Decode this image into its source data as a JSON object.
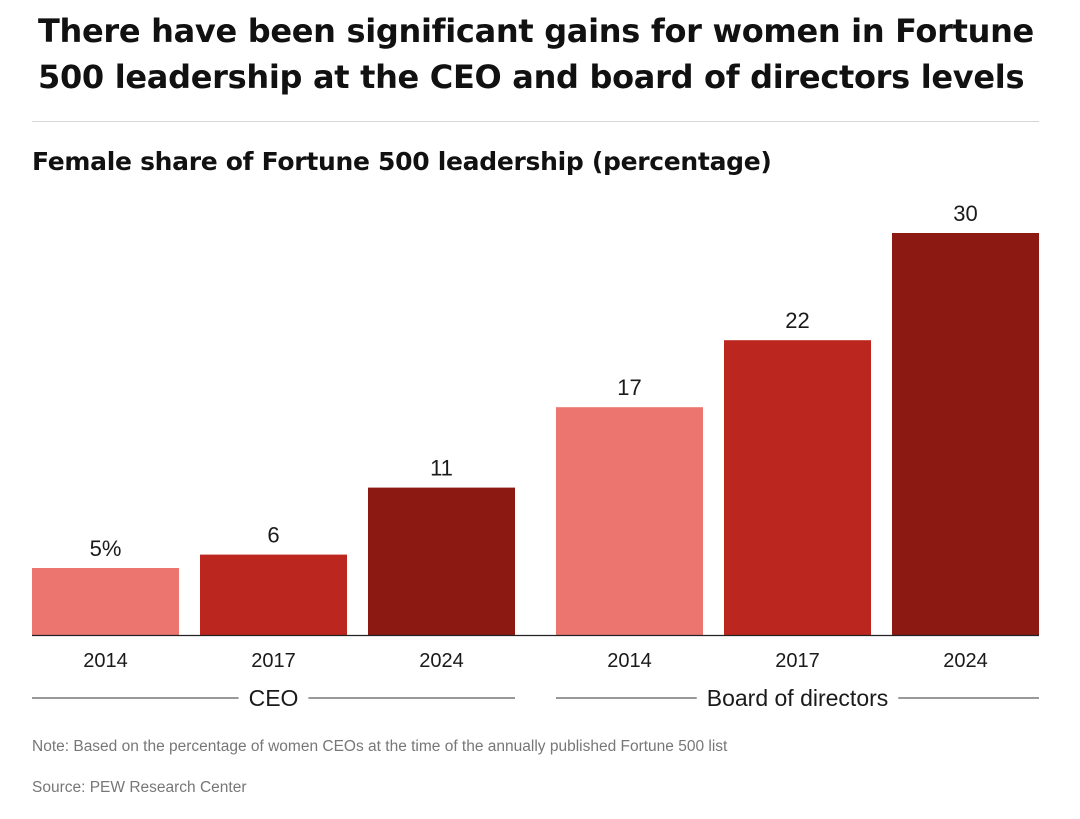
{
  "headline": "There have been significant gains for women in Fortune 500 leadership at the CEO and board of directors levels",
  "note": "Note: Based on the percentage of women CEOs at the time of the annually published Fortune 500 list",
  "source": "Source: PEW Research Center",
  "colors": {
    "light_red": "#ec7570",
    "medium_red": "#bb261e",
    "dark_red": "#8c1a12",
    "text": "#1a1a1a",
    "rule": "#d6d6d6",
    "muted_text": "#777777"
  },
  "chart_data": {
    "type": "bar",
    "title": "Female share of Fortune 500 leadership (percentage)",
    "xlabel": "",
    "ylabel": "",
    "ylim": [
      0,
      30
    ],
    "grid": false,
    "groups": [
      {
        "name": "CEO",
        "bars": [
          {
            "category": "2014",
            "value": 5,
            "label": "5%",
            "color": "#ec7570"
          },
          {
            "category": "2017",
            "value": 6,
            "label": "6",
            "color": "#bb261e"
          },
          {
            "category": "2024",
            "value": 11,
            "label": "11",
            "color": "#8c1a12"
          }
        ]
      },
      {
        "name": "Board of directors",
        "bars": [
          {
            "category": "2014",
            "value": 17,
            "label": "17",
            "color": "#ec7570"
          },
          {
            "category": "2017",
            "value": 22,
            "label": "22",
            "color": "#bb261e"
          },
          {
            "category": "2024",
            "value": 30,
            "label": "30",
            "color": "#8c1a12"
          }
        ]
      }
    ]
  }
}
